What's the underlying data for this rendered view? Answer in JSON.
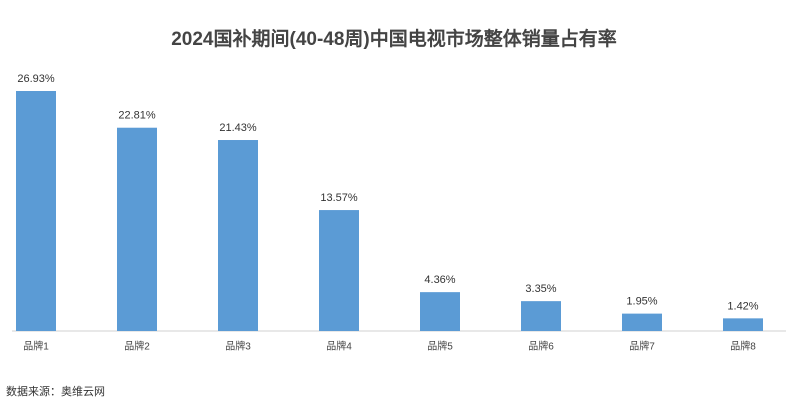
{
  "chart_data": {
    "type": "bar",
    "title": "2024国补期间(40-48周)中国电视市场整体销量占有率",
    "categories": [
      "品牌1",
      "品牌2",
      "品牌3",
      "品牌4",
      "品牌5",
      "品牌6",
      "品牌7",
      "品牌8"
    ],
    "values": [
      26.93,
      22.81,
      21.43,
      13.57,
      4.36,
      3.35,
      1.95,
      1.42
    ],
    "value_labels": [
      "26.93%",
      "22.81%",
      "21.43%",
      "13.57%",
      "4.36%",
      "3.35%",
      "1.95%",
      "1.42%"
    ],
    "color": "#5b9bd5",
    "source": "数据来源：奥维云网"
  }
}
